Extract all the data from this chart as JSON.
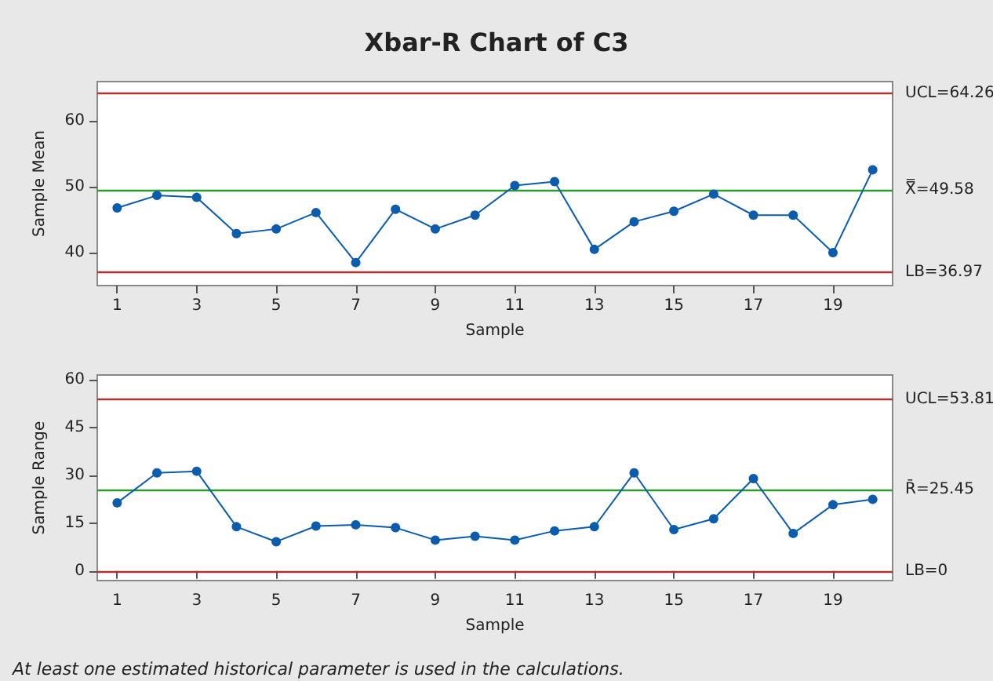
{
  "chart_data": [
    {
      "type": "line",
      "title": "Xbar-R Chart of C3",
      "xlabel": "Sample",
      "ylabel": "Sample Mean",
      "x": [
        1,
        2,
        3,
        4,
        5,
        6,
        7,
        8,
        9,
        10,
        11,
        12,
        13,
        14,
        15,
        16,
        17,
        18,
        19,
        20
      ],
      "series": [
        {
          "color": "#0b5cad",
          "values": [
            46.8,
            48.7,
            48.4,
            42.9,
            43.6,
            46.1,
            38.5,
            46.6,
            43.6,
            45.7,
            50.2,
            50.8,
            40.5,
            44.7,
            46.3,
            48.9,
            45.7,
            45.7,
            40.0,
            52.6
          ]
        }
      ],
      "xlim": [
        0.5,
        20.5
      ],
      "xticks": [
        1,
        3,
        5,
        7,
        9,
        11,
        13,
        15,
        17,
        19
      ],
      "ylim": [
        35,
        66
      ],
      "yticks": [
        40,
        50,
        60
      ],
      "ref_lines": [
        {
          "axis": "y",
          "value": 64.26,
          "label": "UCL=64.26",
          "color": "#b03030"
        },
        {
          "axis": "y",
          "value": 49.58,
          "label": "X̿=49.58",
          "color": "#2e9a2e"
        },
        {
          "axis": "y",
          "value": 36.97,
          "label": "LB=36.97",
          "color": "#b03030"
        }
      ],
      "marker": "circle",
      "line_style": "solid",
      "grid": false
    },
    {
      "type": "line",
      "xlabel": "Sample",
      "ylabel": "Sample Range",
      "x": [
        1,
        2,
        3,
        4,
        5,
        6,
        7,
        8,
        9,
        10,
        11,
        12,
        13,
        14,
        15,
        16,
        17,
        18,
        19,
        20
      ],
      "series": [
        {
          "color": "#0b5cad",
          "values": [
            21.4,
            30.8,
            31.3,
            13.9,
            9.2,
            14.1,
            14.5,
            13.6,
            9.7,
            10.9,
            9.7,
            12.6,
            13.9,
            30.8,
            13.0,
            16.4,
            29.0,
            11.8,
            20.8,
            22.5
          ]
        }
      ],
      "xlim": [
        0.5,
        20.5
      ],
      "xticks": [
        1,
        3,
        5,
        7,
        9,
        11,
        13,
        15,
        17,
        19
      ],
      "ylim": [
        -3,
        61.5
      ],
      "yticks": [
        0,
        15,
        30,
        45,
        60
      ],
      "ref_lines": [
        {
          "axis": "y",
          "value": 53.81,
          "label": "UCL=53.81",
          "color": "#b03030"
        },
        {
          "axis": "y",
          "value": 25.45,
          "label": "R̄=25.45",
          "color": "#2e9a2e"
        },
        {
          "axis": "y",
          "value": 0,
          "label": "LB=0",
          "color": "#b03030"
        }
      ],
      "annotations": [
        "At least one estimated historical parameter is used in the calculations."
      ],
      "marker": "circle",
      "line_style": "solid",
      "grid": false
    }
  ]
}
